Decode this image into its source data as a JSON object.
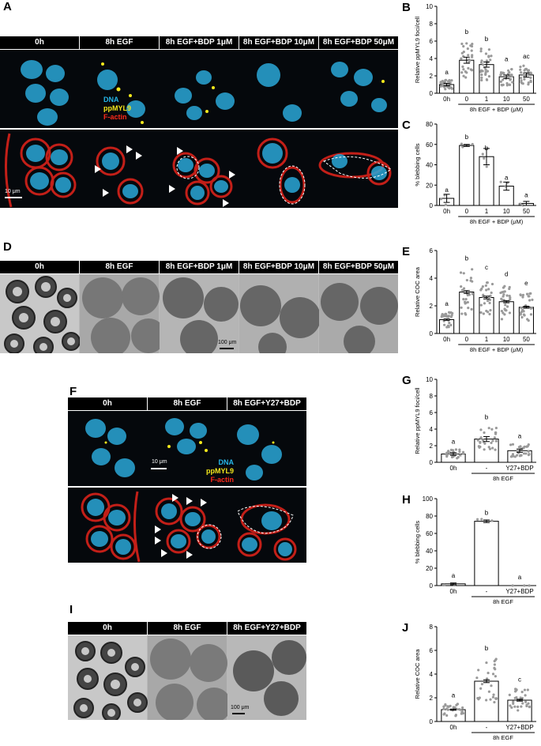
{
  "panels": {
    "A": {
      "label": "A",
      "headers": [
        "0h",
        "8h EGF",
        "8h EGF+BDP 1μM",
        "8h EGF+BDP 10μM",
        "8h EGF+BDP 50μM"
      ],
      "stain_labels": [
        "DNA",
        "ppMYL9",
        "F-actin"
      ],
      "scale": "10 μm"
    },
    "D": {
      "label": "D",
      "headers": [
        "0h",
        "8h EGF",
        "8h EGF+BDP 1μM",
        "8h EGF+BDP 10μM",
        "8h EGF+BDP 50μM"
      ],
      "scale": "100 μm"
    },
    "F": {
      "label": "F",
      "headers": [
        "0h",
        "8h EGF",
        "8h EGF+Y27+BDP"
      ],
      "stain_labels": [
        "DNA",
        "ppMYL9",
        "F-actin"
      ],
      "scale": "10 μm"
    },
    "I": {
      "label": "I",
      "headers": [
        "0h",
        "8h EGF",
        "8h EGF+Y27+BDP"
      ],
      "scale": "100 μm"
    }
  },
  "colors": {
    "dna": "#26b6e8",
    "ppmyl9": "#f4e81c",
    "factin": "#ff2a1a",
    "header_bg": "#000000"
  },
  "chart_data": [
    {
      "id": "B",
      "label": "B",
      "type": "bar",
      "categories": [
        "0h",
        "0",
        "1",
        "10",
        "50"
      ],
      "values": [
        1.0,
        3.8,
        3.3,
        1.9,
        2.1
      ],
      "errors": [
        0.15,
        0.35,
        0.3,
        0.2,
        0.25
      ],
      "letters": [
        "a",
        "b",
        "b",
        "a",
        "ac"
      ],
      "ylabel": "Relative ppMYL9 foci/cell",
      "ylim": [
        0,
        10
      ],
      "yticks": [
        0,
        2,
        4,
        6,
        8,
        10
      ],
      "group_label": "8h EGF + BDP (μM)"
    },
    {
      "id": "C",
      "label": "C",
      "type": "bar",
      "categories": [
        "0h",
        "0",
        "1",
        "10",
        "50"
      ],
      "values": [
        7,
        59,
        48,
        19,
        2
      ],
      "errors": [
        4,
        1,
        8,
        4,
        2
      ],
      "letters": [
        "a",
        "b",
        "b",
        "a",
        "a"
      ],
      "ylabel": "% blebbing cells",
      "ylim": [
        0,
        80
      ],
      "yticks": [
        0,
        20,
        40,
        60,
        80
      ],
      "group_label": "8h EGF + BDP (μM)"
    },
    {
      "id": "E",
      "label": "E",
      "type": "bar",
      "categories": [
        "0h",
        "0",
        "1",
        "10",
        "50"
      ],
      "values": [
        1.0,
        3.0,
        2.6,
        2.3,
        1.9
      ],
      "errors": [
        0.05,
        0.1,
        0.1,
        0.08,
        0.07
      ],
      "letters": [
        "a",
        "b",
        "c",
        "d",
        "e"
      ],
      "ylabel": "Relative COC area",
      "ylim": [
        0,
        6
      ],
      "yticks": [
        0,
        2,
        4,
        6
      ],
      "group_label": "8h EGF + BDP (μM)"
    },
    {
      "id": "G",
      "label": "G",
      "type": "bar",
      "categories": [
        "0h",
        "-",
        "Y27+BDP"
      ],
      "values": [
        1.0,
        2.8,
        1.4
      ],
      "errors": [
        0.15,
        0.3,
        0.2
      ],
      "letters": [
        "a",
        "b",
        "a"
      ],
      "ylabel": "Relative ppMYL9 foci/cell",
      "ylim": [
        0,
        10
      ],
      "yticks": [
        0,
        2,
        4,
        6,
        8,
        10
      ],
      "group_label": "8h EGF"
    },
    {
      "id": "H",
      "label": "H",
      "type": "bar",
      "categories": [
        "0h",
        "-",
        "Y27+BDP"
      ],
      "values": [
        2,
        74,
        0
      ],
      "errors": [
        1,
        1.5,
        0
      ],
      "letters": [
        "a",
        "b",
        "a"
      ],
      "ylabel": "% blebbing cells",
      "ylim": [
        0,
        100
      ],
      "yticks": [
        0,
        20,
        40,
        60,
        80,
        100
      ],
      "group_label": "8h EGF"
    },
    {
      "id": "J",
      "label": "J",
      "type": "bar",
      "categories": [
        "0h",
        "-",
        "Y27+BDP"
      ],
      "values": [
        1.0,
        3.4,
        1.8
      ],
      "errors": [
        0.05,
        0.12,
        0.08
      ],
      "letters": [
        "a",
        "b",
        "c"
      ],
      "ylabel": "Relative COC area",
      "ylim": [
        0,
        8
      ],
      "yticks": [
        0,
        2,
        4,
        6,
        8
      ],
      "group_label": "8h EGF"
    }
  ]
}
